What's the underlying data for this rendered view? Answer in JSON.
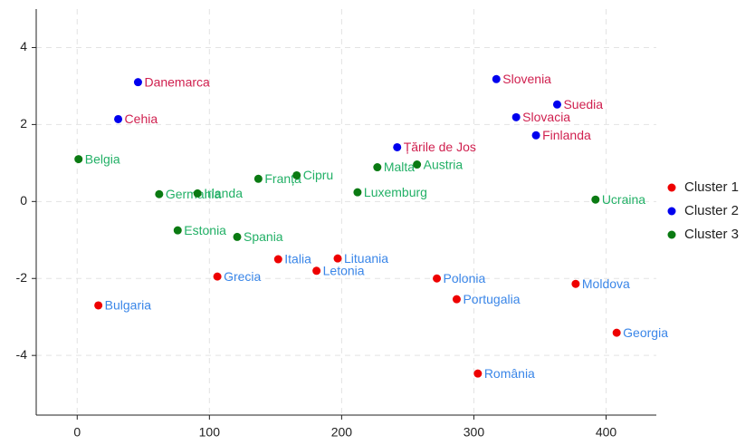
{
  "chart_data": {
    "type": "scatter",
    "xlim": [
      -31,
      438
    ],
    "ylim": [
      -5.55,
      5
    ],
    "xticks": [
      0,
      100,
      200,
      300,
      400
    ],
    "yticks": [
      -4,
      -2,
      0,
      2,
      4
    ],
    "grid": true,
    "legend": "right",
    "series": [
      {
        "name": "Cluster 1",
        "color": "#ee0000",
        "label_color": "#3a86e8",
        "labels": [
          "Bulgaria",
          "Grecia",
          "Italia",
          "Letonia",
          "Lituania",
          "Polonia",
          "Portugalia",
          "România",
          "Moldova",
          "Georgia"
        ],
        "x": [
          16,
          106,
          152,
          181,
          197,
          272,
          287,
          303,
          377,
          408
        ],
        "values": [
          -2.7,
          -1.95,
          -1.5,
          -1.8,
          -1.48,
          -2.0,
          -2.54,
          -4.47,
          -2.14,
          -3.41
        ]
      },
      {
        "name": "Cluster 2",
        "color": "#0000ee",
        "label_color": "#d0204f",
        "labels": [
          "Danemarca",
          "Cehia",
          "Slovenia",
          "Suedia",
          "Slovacia",
          "Finlanda",
          "Țările de Jos"
        ],
        "x": [
          46,
          31,
          317,
          363,
          332,
          347,
          242
        ],
        "values": [
          3.1,
          2.14,
          3.18,
          2.52,
          2.19,
          1.72,
          1.41
        ]
      },
      {
        "name": "Cluster 3",
        "color": "#0a7a12",
        "label_color": "#22b066",
        "labels": [
          "Belgia",
          "Germania",
          "Irlanda",
          "Franța",
          "Cipru",
          "Malta",
          "Austria",
          "Luxemburg",
          "Ucraina",
          "Estonia",
          "Spania"
        ],
        "x": [
          1,
          62,
          91,
          137,
          166,
          227,
          257,
          212,
          392,
          76,
          121
        ],
        "values": [
          1.1,
          0.19,
          0.21,
          0.59,
          0.68,
          0.89,
          0.96,
          0.24,
          0.05,
          -0.75,
          -0.92
        ]
      }
    ]
  }
}
